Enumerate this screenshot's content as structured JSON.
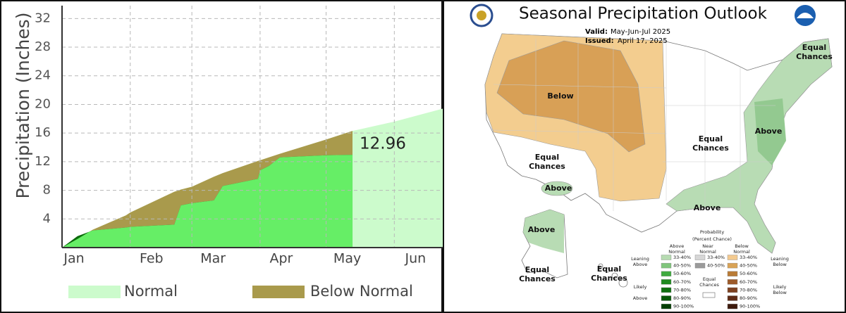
{
  "chart_data": {
    "type": "area",
    "y_label": "Precipitation (Inches)",
    "x": [
      1,
      8,
      15,
      30,
      32,
      52,
      55,
      60,
      70,
      74,
      90,
      91,
      95,
      100,
      121,
      133,
      152,
      174
    ],
    "xlim": [
      1,
      174
    ],
    "xticks": [
      {
        "value": 1,
        "label": "Jan"
      },
      {
        "value": 32,
        "label": "Feb"
      },
      {
        "value": 60,
        "label": "Mar"
      },
      {
        "value": 91,
        "label": "Apr"
      },
      {
        "value": 121,
        "label": "May"
      },
      {
        "value": 152,
        "label": "Jun"
      }
    ],
    "ylim": [
      0,
      33.8
    ],
    "yticks": [
      4,
      8,
      12,
      16,
      20,
      24,
      28,
      32
    ],
    "grid": true,
    "series": [
      {
        "name": "Normal",
        "color": "#ccfbcc",
        "values": [
          0,
          1.2,
          2.5,
          4.5,
          4.9,
          7.8,
          8.1,
          8.5,
          9.9,
          10.4,
          12.1,
          12.2,
          12.6,
          13.1,
          15.1,
          16.3,
          17.6,
          19.4
        ]
      }
    ],
    "observed": {
      "color": "#66ee66",
      "above_color": "#0b6b0b",
      "values": [
        0,
        1.6,
        2.4,
        2.8,
        2.9,
        3.2,
        5.9,
        6.2,
        6.6,
        8.6,
        9.6,
        10.8,
        11.4,
        12.6,
        12.9,
        12.96,
        null,
        null
      ]
    },
    "below_normal": {
      "name": "Below Normal",
      "color": "#a99a4c"
    }
  },
  "map": {
    "title": "Seasonal Precipitation Outlook",
    "valid_label": "Valid:",
    "valid": "May-Jun-Jul 2025",
    "issued_label": "Issued:",
    "issued": "April 17, 2025",
    "labels": [
      {
        "lines": [
          "Below"
        ]
      },
      {
        "lines": [
          "Equal",
          "Chances"
        ]
      },
      {
        "lines": [
          "Above"
        ]
      },
      {
        "lines": [
          "Equal",
          "Chances"
        ]
      },
      {
        "lines": [
          "Above"
        ]
      },
      {
        "lines": [
          "Above"
        ]
      },
      {
        "lines": [
          "Equal",
          "Chances"
        ]
      },
      {
        "lines": [
          "Above"
        ]
      },
      {
        "lines": [
          "Equal",
          "Chances"
        ]
      },
      {
        "lines": [
          "Equal",
          "Chances"
        ]
      }
    ],
    "legend": {
      "title": [
        "Probability",
        "(Percent Chance)"
      ],
      "above_header": [
        "Above",
        "Normal"
      ],
      "near_header": [
        "Near",
        "Normal"
      ],
      "below_header": [
        "Below",
        "Normal"
      ],
      "equal": [
        "Equal",
        "Chances"
      ],
      "leaning_above": [
        "Leaning",
        "Above"
      ],
      "leaning_below": [
        "Leaning",
        "Below"
      ],
      "likely_above": [
        "Likely",
        "Above"
      ],
      "likely_below": [
        "Likely",
        "Below"
      ],
      "above": [
        {
          "label": "33-40%",
          "color": "#b6dbb1"
        },
        {
          "label": "40-50%",
          "color": "#80c57c"
        },
        {
          "label": "50-60%",
          "color": "#3faa3f"
        },
        {
          "label": "60-70%",
          "color": "#1f8a1f"
        },
        {
          "label": "70-80%",
          "color": "#0f6f0f"
        },
        {
          "label": "80-90%",
          "color": "#075707"
        },
        {
          "label": "90-100%",
          "color": "#033e03"
        }
      ],
      "near": [
        {
          "label": "33-40%",
          "color": "#d6d6d6"
        },
        {
          "label": "40-50%",
          "color": "#9a9a9a"
        }
      ],
      "below": [
        {
          "label": "33-40%",
          "color": "#f3ca8f"
        },
        {
          "label": "40-50%",
          "color": "#d9a356"
        },
        {
          "label": "50-60%",
          "color": "#b97b36"
        },
        {
          "label": "60-70%",
          "color": "#9c5a2a"
        },
        {
          "label": "70-80%",
          "color": "#7d4020"
        },
        {
          "label": "80-90%",
          "color": "#5e2b16"
        },
        {
          "label": "90-100%",
          "color": "#3d1a0c"
        }
      ]
    }
  }
}
